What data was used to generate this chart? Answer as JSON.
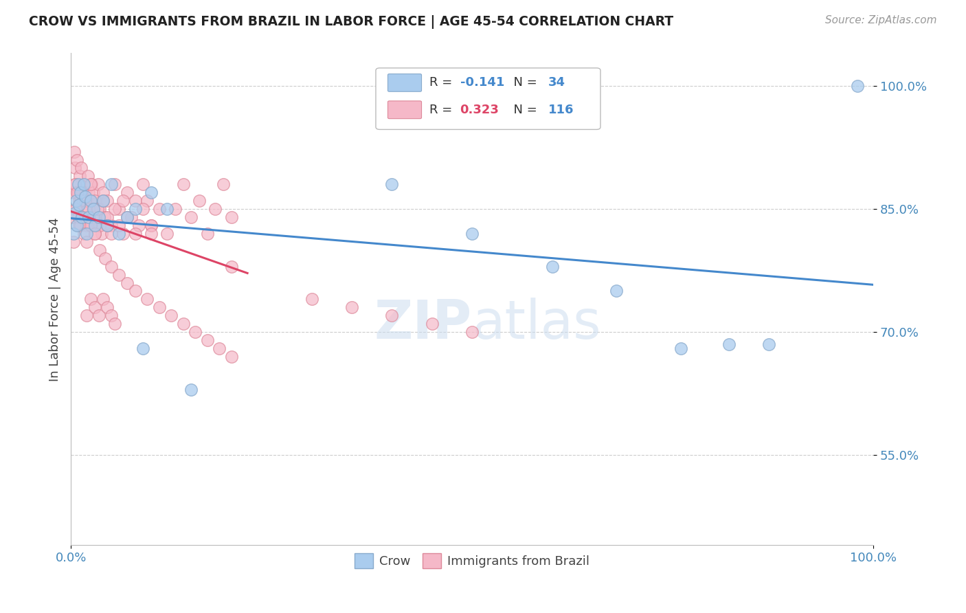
{
  "title": "CROW VS IMMIGRANTS FROM BRAZIL IN LABOR FORCE | AGE 45-54 CORRELATION CHART",
  "source": "Source: ZipAtlas.com",
  "ylabel": "In Labor Force | Age 45-54",
  "xlim": [
    0.0,
    1.0
  ],
  "ylim": [
    0.44,
    1.04
  ],
  "yticks": [
    0.55,
    0.7,
    0.85,
    1.0
  ],
  "ytick_labels": [
    "55.0%",
    "70.0%",
    "85.0%",
    "100.0%"
  ],
  "xticks": [
    0.0,
    1.0
  ],
  "xtick_labels": [
    "0.0%",
    "100.0%"
  ],
  "crow_color": "#aaccee",
  "crow_edge_color": "#88aacc",
  "brazil_color": "#f5b8c8",
  "brazil_edge_color": "#dd8899",
  "crow_line_color": "#4488cc",
  "brazil_line_color": "#dd4466",
  "background_color": "#ffffff",
  "grid_color": "#cccccc",
  "crow_x": [
    0.003,
    0.005,
    0.007,
    0.008,
    0.009,
    0.01,
    0.012,
    0.014,
    0.016,
    0.018,
    0.02,
    0.022,
    0.025,
    0.028,
    0.03,
    0.035,
    0.04,
    0.045,
    0.05,
    0.06,
    0.07,
    0.08,
    0.09,
    0.1,
    0.12,
    0.15,
    0.4,
    0.5,
    0.6,
    0.68,
    0.76,
    0.82,
    0.87,
    0.98
  ],
  "crow_y": [
    0.82,
    0.845,
    0.86,
    0.83,
    0.88,
    0.855,
    0.87,
    0.84,
    0.88,
    0.865,
    0.82,
    0.84,
    0.86,
    0.85,
    0.83,
    0.84,
    0.86,
    0.83,
    0.88,
    0.82,
    0.84,
    0.85,
    0.68,
    0.87,
    0.85,
    0.63,
    0.88,
    0.82,
    0.78,
    0.75,
    0.68,
    0.685,
    0.685,
    1.0
  ],
  "brazil_x": [
    0.003,
    0.004,
    0.005,
    0.006,
    0.007,
    0.008,
    0.009,
    0.01,
    0.011,
    0.012,
    0.013,
    0.014,
    0.015,
    0.016,
    0.017,
    0.018,
    0.019,
    0.02,
    0.021,
    0.022,
    0.023,
    0.024,
    0.025,
    0.026,
    0.027,
    0.028,
    0.029,
    0.03,
    0.032,
    0.034,
    0.036,
    0.038,
    0.04,
    0.042,
    0.045,
    0.05,
    0.055,
    0.06,
    0.065,
    0.07,
    0.075,
    0.08,
    0.085,
    0.09,
    0.095,
    0.1,
    0.11,
    0.12,
    0.13,
    0.14,
    0.15,
    0.16,
    0.17,
    0.18,
    0.19,
    0.2,
    0.003,
    0.005,
    0.008,
    0.01,
    0.012,
    0.015,
    0.018,
    0.02,
    0.022,
    0.025,
    0.028,
    0.03,
    0.033,
    0.036,
    0.04,
    0.045,
    0.05,
    0.055,
    0.06,
    0.065,
    0.07,
    0.08,
    0.09,
    0.1,
    0.003,
    0.006,
    0.009,
    0.012,
    0.016,
    0.02,
    0.025,
    0.03,
    0.036,
    0.043,
    0.05,
    0.06,
    0.07,
    0.08,
    0.095,
    0.11,
    0.125,
    0.14,
    0.155,
    0.17,
    0.185,
    0.2,
    0.045,
    0.1,
    0.2,
    0.3,
    0.35,
    0.4,
    0.45,
    0.5,
    0.02,
    0.025,
    0.03,
    0.035,
    0.04,
    0.045,
    0.05,
    0.055
  ],
  "brazil_y": [
    0.87,
    0.92,
    0.9,
    0.88,
    0.85,
    0.91,
    0.87,
    0.86,
    0.89,
    0.84,
    0.9,
    0.87,
    0.86,
    0.88,
    0.85,
    0.87,
    0.84,
    0.86,
    0.89,
    0.87,
    0.84,
    0.86,
    0.83,
    0.88,
    0.85,
    0.87,
    0.84,
    0.86,
    0.83,
    0.88,
    0.85,
    0.82,
    0.87,
    0.84,
    0.86,
    0.83,
    0.88,
    0.85,
    0.82,
    0.87,
    0.84,
    0.86,
    0.83,
    0.88,
    0.86,
    0.83,
    0.85,
    0.82,
    0.85,
    0.88,
    0.84,
    0.86,
    0.82,
    0.85,
    0.88,
    0.84,
    0.84,
    0.88,
    0.87,
    0.83,
    0.86,
    0.84,
    0.86,
    0.83,
    0.85,
    0.88,
    0.84,
    0.82,
    0.85,
    0.83,
    0.86,
    0.84,
    0.82,
    0.85,
    0.83,
    0.86,
    0.84,
    0.82,
    0.85,
    0.83,
    0.81,
    0.85,
    0.84,
    0.83,
    0.82,
    0.81,
    0.83,
    0.82,
    0.8,
    0.79,
    0.78,
    0.77,
    0.76,
    0.75,
    0.74,
    0.73,
    0.72,
    0.71,
    0.7,
    0.69,
    0.68,
    0.67,
    0.83,
    0.82,
    0.78,
    0.74,
    0.73,
    0.72,
    0.71,
    0.7,
    0.72,
    0.74,
    0.73,
    0.72,
    0.74,
    0.73,
    0.72,
    0.71
  ]
}
